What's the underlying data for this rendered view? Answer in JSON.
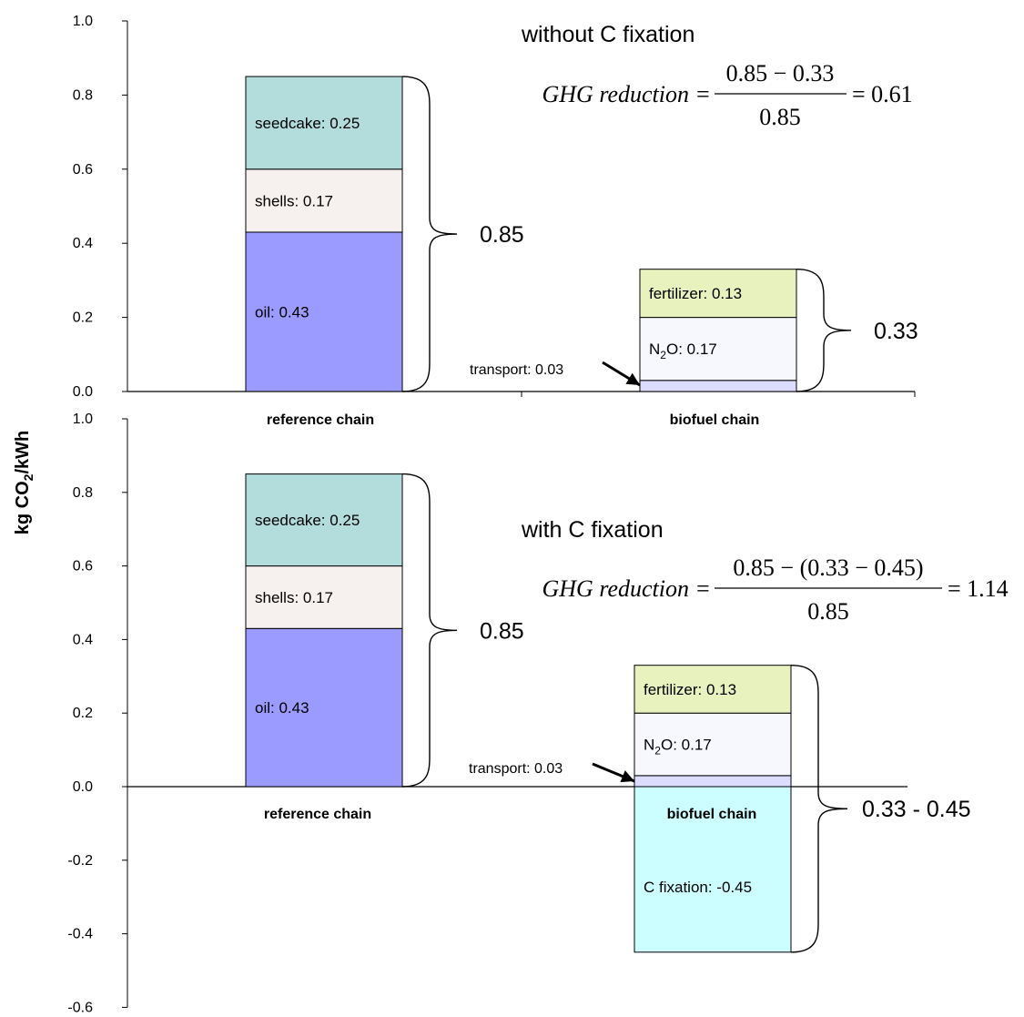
{
  "y_axis_label": "kg CO",
  "y_axis_label_sub": "2",
  "y_axis_label_end": "/kWh",
  "colors": {
    "seedcake": "#b3dddd",
    "shells": "#f6f0ee",
    "oil": "#9b9bff",
    "fertilizer": "#e7f2bf",
    "n2o": "#f7f8fe",
    "transport": "#dcdcff",
    "c_fixation": "#ccfeff"
  },
  "chart_data": [
    {
      "type": "bar",
      "stacked": true,
      "title": "without C fixation",
      "ylim": [
        0,
        1.0
      ],
      "yticks": [
        "0.0",
        "0.2",
        "0.4",
        "0.6",
        "0.8",
        "1.0"
      ],
      "categories": [
        "reference chain",
        "biofuel chain"
      ],
      "series": [
        {
          "key": "oil",
          "name": "oil",
          "label": "oil: 0.43",
          "values": [
            0.43,
            0
          ]
        },
        {
          "key": "shells",
          "name": "shells",
          "label": "shells: 0.17",
          "values": [
            0.17,
            0
          ]
        },
        {
          "key": "seedcake",
          "name": "seedcake",
          "label": "seedcake: 0.25",
          "values": [
            0.25,
            0
          ]
        },
        {
          "key": "transport",
          "name": "transport",
          "label": "transport: 0.03",
          "values": [
            0,
            0.03
          ]
        },
        {
          "key": "n2o",
          "name": "N2O",
          "label": "N",
          "label_sub": "2",
          "label_end": "O: 0.17",
          "values": [
            0,
            0.17
          ]
        },
        {
          "key": "fertilizer",
          "name": "fertilizer",
          "label": "fertilizer: 0.13",
          "values": [
            0,
            0.13
          ]
        }
      ],
      "totals": [
        "0.85",
        "0.33"
      ],
      "equation": {
        "lhs": "GHG reduction",
        "numerator": "0.85 − 0.33",
        "denominator": "0.85",
        "result": "= 0.61"
      }
    },
    {
      "type": "bar",
      "stacked": true,
      "title": "with C fixation",
      "ylim": [
        -0.6,
        1.0
      ],
      "yticks": [
        "-0.6",
        "-0.4",
        "-0.2",
        "0.0",
        "0.2",
        "0.4",
        "0.6",
        "0.8",
        "1.0"
      ],
      "categories": [
        "reference chain",
        "biofuel chain"
      ],
      "series": [
        {
          "key": "oil",
          "name": "oil",
          "label": "oil: 0.43",
          "values": [
            0.43,
            0
          ]
        },
        {
          "key": "shells",
          "name": "shells",
          "label": "shells: 0.17",
          "values": [
            0.17,
            0
          ]
        },
        {
          "key": "seedcake",
          "name": "seedcake",
          "label": "seedcake: 0.25",
          "values": [
            0.25,
            0
          ]
        },
        {
          "key": "transport",
          "name": "transport",
          "label": "transport: 0.03",
          "values": [
            0,
            0.03
          ]
        },
        {
          "key": "n2o",
          "name": "N2O",
          "label": "N",
          "label_sub": "2",
          "label_end": "O: 0.17",
          "values": [
            0,
            0.17
          ]
        },
        {
          "key": "fertilizer",
          "name": "fertilizer",
          "label": "fertilizer: 0.13",
          "values": [
            0,
            0.13
          ]
        },
        {
          "key": "c_fixation",
          "name": "C fixation",
          "label": "C fixation: -0.45",
          "values": [
            0,
            -0.45
          ]
        }
      ],
      "totals": [
        "0.85",
        "0.33 - 0.45"
      ],
      "equation": {
        "lhs": "GHG reduction",
        "numerator": "0.85 − (0.33 − 0.45)",
        "denominator": "0.85",
        "result": "= 1.14"
      }
    }
  ]
}
